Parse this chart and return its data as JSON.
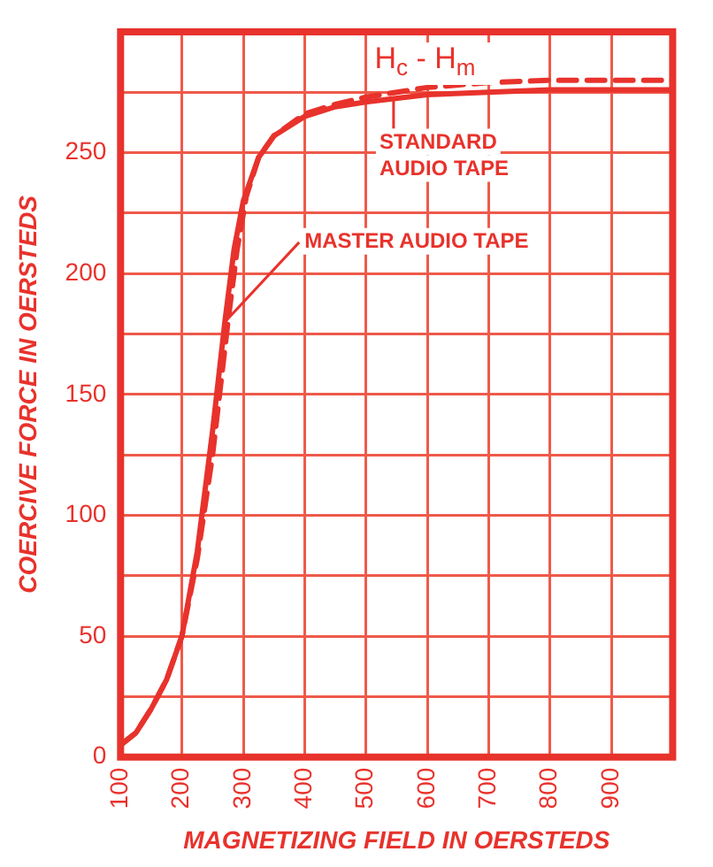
{
  "chart_data": {
    "type": "line",
    "title": "H$_{c}$ - H$_{m}$",
    "xlabel": "MAGNETIZING FIELD IN OERSTEDS",
    "ylabel": "COERCIVE FORCE IN OERSTEDS",
    "xlim": [
      100,
      1000
    ],
    "ylim": [
      0,
      300
    ],
    "xticks": [
      100,
      200,
      300,
      400,
      500,
      600,
      700,
      800,
      900,
      {
        "value": 1000,
        "label": null
      }
    ],
    "yticks": [
      0,
      {
        "value": 25,
        "label": null
      },
      50,
      {
        "value": 75,
        "label": null
      },
      100,
      {
        "value": 125,
        "label": null
      },
      150,
      {
        "value": 175,
        "label": null
      },
      200,
      {
        "value": 225,
        "label": null
      },
      250,
      {
        "value": 275,
        "label": null
      },
      {
        "value": 300,
        "label": null
      }
    ],
    "grid": true,
    "legend": false,
    "marker": "none",
    "series": [
      {
        "color": "#e8322c",
        "line_style": "solid",
        "x": [
          100,
          125,
          150,
          175,
          200,
          225,
          250,
          270,
          285,
          300,
          325,
          350,
          400,
          450,
          500,
          600,
          700,
          800,
          900,
          1000
        ],
        "values": [
          5,
          10,
          20,
          32,
          50,
          85,
          135,
          180,
          210,
          230,
          248,
          257,
          265,
          269,
          271,
          274,
          275,
          276,
          276,
          276
        ]
      },
      {
        "color": "#e8322c",
        "line_style": "dashed",
        "x": [
          100,
          125,
          150,
          175,
          200,
          225,
          250,
          275,
          290,
          305,
          325,
          350,
          400,
          450,
          500,
          600,
          700,
          800,
          900,
          1000
        ],
        "values": [
          5,
          10,
          20,
          32,
          50,
          82,
          125,
          180,
          210,
          232,
          248,
          257,
          266,
          270,
          273,
          277,
          279,
          280,
          280,
          280
        ]
      }
    ],
    "annotations": [
      {
        "text": "STANDARD AUDIO TAPE",
        "x": 545,
        "y": 276
      },
      {
        "text": "MASTER AUDIO TAPE",
        "x": 270,
        "y": 180
      }
    ]
  }
}
